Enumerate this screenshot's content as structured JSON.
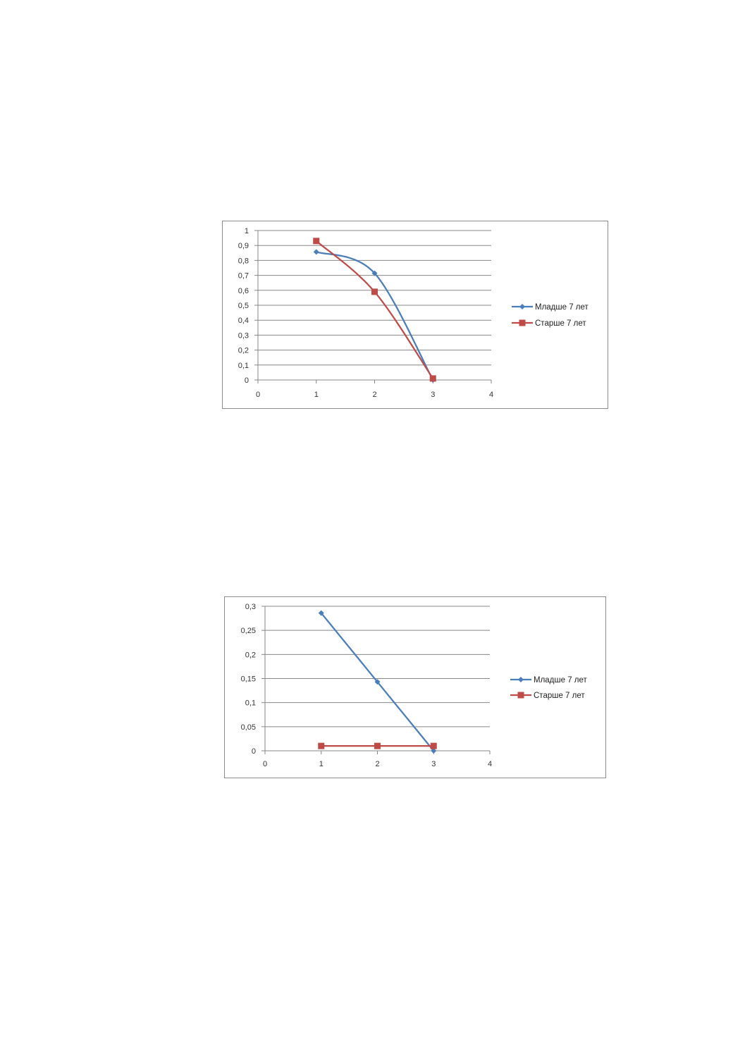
{
  "chart_data": [
    {
      "type": "scatter",
      "smooth": true,
      "x_ticks": [
        "0",
        "1",
        "2",
        "3",
        "4"
      ],
      "y_ticks": [
        "0",
        "0,1",
        "0,2",
        "0,3",
        "0,4",
        "0,5",
        "0,6",
        "0,7",
        "0,8",
        "0,9",
        "1"
      ],
      "xlim": [
        0,
        4
      ],
      "ylim": [
        0,
        1
      ],
      "grid": "horizontal",
      "legend_position": "right",
      "series": [
        {
          "name": "Младше 7 лет",
          "color": "#4a7ebb",
          "marker": "diamond",
          "x": [
            1,
            2,
            3
          ],
          "y": [
            0.857,
            0.714,
            0
          ]
        },
        {
          "name": "Старше 7 лет",
          "color": "#be4b48",
          "marker": "square",
          "x": [
            1,
            2,
            3
          ],
          "y": [
            0.93,
            0.59,
            0.01
          ]
        }
      ]
    },
    {
      "type": "scatter",
      "smooth": false,
      "x_ticks": [
        "0",
        "1",
        "2",
        "3",
        "4"
      ],
      "y_ticks": [
        "0",
        "0,05",
        "0,1",
        "0,15",
        "0,2",
        "0,25",
        "0,3"
      ],
      "xlim": [
        0,
        4
      ],
      "ylim": [
        0,
        0.3
      ],
      "grid": "horizontal",
      "legend_position": "right",
      "series": [
        {
          "name": "Младше 7 лет",
          "color": "#4a7ebb",
          "marker": "diamond",
          "x": [
            1,
            2,
            3
          ],
          "y": [
            0.286,
            0.143,
            0
          ]
        },
        {
          "name": "Старше 7 лет",
          "color": "#be4b48",
          "marker": "square",
          "x": [
            1,
            2,
            3
          ],
          "y": [
            0.01,
            0.01,
            0.01
          ]
        }
      ]
    }
  ]
}
